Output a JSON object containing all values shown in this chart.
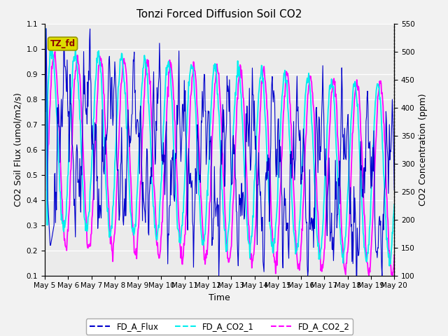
{
  "title": "Tonzi Forced Diffusion Soil CO2",
  "xlabel": "Time",
  "ylabel_left": "CO2 Soil Flux (umol/m2/s)",
  "ylabel_right": "CO2 Concentration (ppm)",
  "ylim_left": [
    0.1,
    1.1
  ],
  "ylim_right": [
    100,
    550
  ],
  "yticks_left": [
    0.1,
    0.2,
    0.3,
    0.4,
    0.5,
    0.6,
    0.7,
    0.8,
    0.9,
    1.0,
    1.1
  ],
  "yticks_right": [
    100,
    150,
    200,
    250,
    300,
    350,
    400,
    450,
    500,
    550
  ],
  "n_days": 15,
  "xtick_labels": [
    "May 5",
    "May 6",
    "May 7",
    "May 8",
    "May 9",
    "May 10",
    "May 11",
    "May 12",
    "May 13",
    "May 14",
    "May 15",
    "May 16",
    "May 17",
    "May 18",
    "May 19",
    "May 20"
  ],
  "legend_entries": [
    "FD_A_Flux",
    "FD_A_CO2_1",
    "FD_A_CO2_2"
  ],
  "flux_color": "#0000CC",
  "co2_1_color": "#00EEEE",
  "co2_2_color": "#FF00FF",
  "annotation_text": "TZ_fd",
  "annotation_bg": "#DDDD00",
  "annotation_border": "#999900",
  "plot_bg": "#EBEBEB",
  "fig_bg": "#F2F2F2",
  "grid_color": "#FFFFFF",
  "title_fontsize": 11,
  "axis_label_fontsize": 9,
  "tick_fontsize": 7.5,
  "legend_fontsize": 8.5
}
